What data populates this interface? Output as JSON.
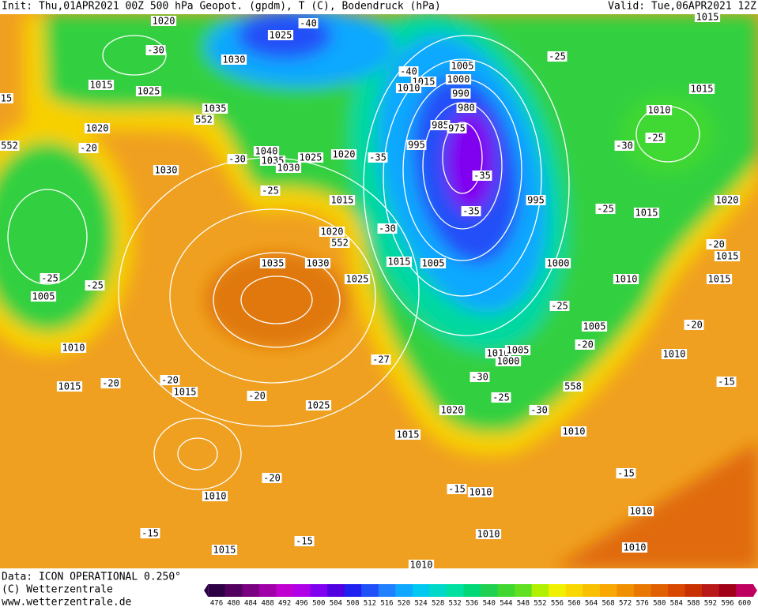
{
  "header": {
    "left": "Init: Thu,01APR2021 00Z  500 hPa Geopot. (gpdm), T (C), Bodendruck (hPa)",
    "right": "Valid: Tue,06APR2021 12Z"
  },
  "footer": {
    "data": "Data: ICON OPERATIONAL 0.250°",
    "copyright": "(C) Wetterzentrale",
    "url": "www.wetterzentrale.de"
  },
  "colorbar": {
    "ticks": [
      476,
      480,
      484,
      488,
      492,
      496,
      500,
      504,
      508,
      512,
      516,
      520,
      524,
      528,
      532,
      536,
      540,
      544,
      548,
      552,
      556,
      560,
      564,
      568,
      572,
      576,
      580,
      584,
      588,
      592,
      596,
      600
    ],
    "colors": [
      "#2d0046",
      "#52005f",
      "#7a0082",
      "#a000a8",
      "#c000d0",
      "#b000e8",
      "#8000f0",
      "#5000e0",
      "#2020f0",
      "#2050f8",
      "#2080ff",
      "#10a8ff",
      "#00c8f0",
      "#00d8c8",
      "#00e0a0",
      "#00d878",
      "#20d050",
      "#40d830",
      "#60e020",
      "#b0f000",
      "#f0f000",
      "#f8d800",
      "#f8c000",
      "#f8a800",
      "#f09000",
      "#e87800",
      "#e06000",
      "#d84800",
      "#c83000",
      "#b81818",
      "#a00018",
      "#c00060"
    ]
  },
  "map_labels": [
    1020,
    1025,
    -30,
    1030,
    1015,
    1025,
    1035,
    552,
    1020,
    552,
    -20,
    1040,
    1035,
    1030,
    1025,
    1020,
    -35,
    -30,
    1030,
    -25,
    1015,
    1020,
    552,
    -30,
    1035,
    1030,
    1015,
    1005,
    1025,
    -25,
    -25,
    1005,
    1010,
    -27,
    1015,
    -20,
    -20,
    1015,
    -20,
    1025,
    1020,
    1015,
    -20,
    1010,
    -15,
    1015,
    -15,
    1010,
    1005,
    1000,
    1015,
    1010,
    990,
    980,
    985,
    975,
    995,
    -35,
    -35,
    995,
    1000,
    1010,
    1005,
    -20,
    -25,
    1010,
    1000,
    1005,
    -30,
    -25,
    -30,
    558,
    1010,
    -15,
    1010,
    -15,
    1010,
    1010,
    1010,
    -25,
    1015,
    1010,
    -25,
    -30,
    -25,
    1015,
    1020,
    -20,
    1015,
    1015,
    -20,
    1010,
    -15,
    1015,
    -40,
    -40,
    15
  ]
}
